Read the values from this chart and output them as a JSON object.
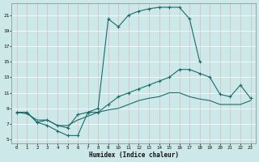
{
  "xlabel": "Humidex (Indice chaleur)",
  "bg_color": "#cce8e8",
  "grid_color": "#b0d8d8",
  "line_color": "#1a6b6b",
  "xlim": [
    -0.5,
    23.5
  ],
  "ylim": [
    4.5,
    22.5
  ],
  "xticks": [
    0,
    1,
    2,
    3,
    4,
    5,
    6,
    7,
    8,
    9,
    10,
    11,
    12,
    13,
    14,
    15,
    16,
    17,
    18,
    19,
    20,
    21,
    22,
    23
  ],
  "yticks": [
    5,
    7,
    9,
    11,
    13,
    15,
    17,
    19,
    21
  ],
  "series1": {
    "x": [
      0,
      1,
      2,
      3,
      4,
      5,
      6,
      7,
      8,
      9,
      10,
      11,
      12,
      13,
      14,
      15,
      16,
      17,
      18,
      19,
      20,
      21,
      22,
      23
    ],
    "y": [
      8.5,
      8.5,
      7.2,
      6.8,
      6.1,
      5.5,
      5.5,
      8.5,
      9.0,
      20.5,
      19.5,
      21.0,
      21.5,
      21.8,
      22.0,
      22.0,
      22.0,
      20.5,
      15.0,
      null,
      null,
      null,
      null,
      null
    ],
    "marker": "+"
  },
  "series2": {
    "x": [
      0,
      1,
      2,
      3,
      4,
      5,
      6,
      7,
      8,
      9,
      10,
      11,
      12,
      13,
      14,
      15,
      16,
      17,
      18,
      19,
      20,
      21,
      22,
      23
    ],
    "y": [
      8.5,
      8.5,
      7.2,
      7.5,
      6.8,
      6.5,
      8.2,
      8.5,
      8.5,
      9.5,
      10.5,
      11.0,
      11.5,
      12.0,
      12.5,
      13.0,
      14.0,
      14.0,
      13.5,
      13.0,
      10.8,
      10.5,
      12.0,
      10.3
    ],
    "marker": "+"
  },
  "series3": {
    "x": [
      0,
      1,
      2,
      3,
      4,
      5,
      6,
      7,
      8,
      9,
      10,
      11,
      12,
      13,
      14,
      15,
      16,
      17,
      18,
      19,
      20,
      21,
      22,
      23
    ],
    "y": [
      8.5,
      8.3,
      7.5,
      7.5,
      6.8,
      6.8,
      7.5,
      8.0,
      8.5,
      8.8,
      9.0,
      9.5,
      10.0,
      10.3,
      10.5,
      11.0,
      11.0,
      10.5,
      10.2,
      10.0,
      9.5,
      9.5,
      9.5,
      10.0
    ],
    "marker": null
  }
}
